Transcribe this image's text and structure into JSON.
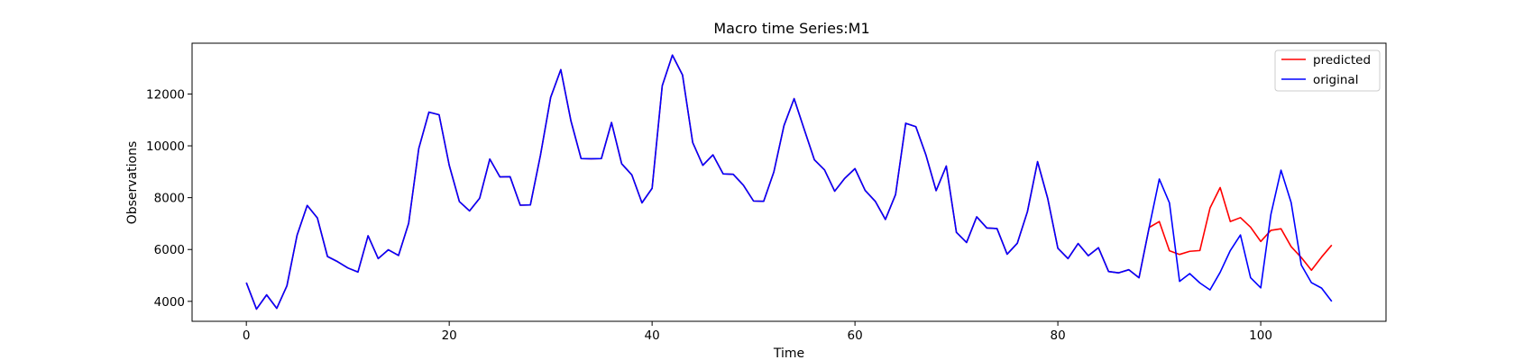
{
  "chart_data": {
    "type": "line",
    "title": "Macro time Series:M1",
    "xlabel": "Time",
    "ylabel": "Observations",
    "xlim": [
      -5.35,
      112.35
    ],
    "ylim": [
      3230,
      13960
    ],
    "xticks": [
      0,
      20,
      40,
      60,
      80,
      100
    ],
    "yticks": [
      4000,
      6000,
      8000,
      10000,
      12000
    ],
    "grid": false,
    "legend_position": "top-right",
    "series": [
      {
        "name": "predicted",
        "color": "#ff0000",
        "x_start": 0,
        "values": [
          4720,
          3700,
          4250,
          3730,
          4600,
          6550,
          7700,
          7220,
          5730,
          5530,
          5290,
          5130,
          6530,
          5650,
          5990,
          5770,
          7010,
          9900,
          11300,
          11200,
          9250,
          7850,
          7490,
          7980,
          9490,
          8800,
          8810,
          7710,
          7720,
          9650,
          11870,
          12940,
          10960,
          9510,
          9500,
          9510,
          10900,
          9310,
          8880,
          7800,
          8360,
          12320,
          13500,
          12730,
          10130,
          9250,
          9650,
          8920,
          8900,
          8480,
          7870,
          7860,
          8990,
          10780,
          11820,
          10630,
          9460,
          9070,
          8250,
          8750,
          9120,
          8280,
          7860,
          7160,
          8120,
          10870,
          10740,
          9640,
          8270,
          9220,
          6660,
          6270,
          7260,
          6830,
          6810,
          5820,
          6240,
          7460,
          9390,
          7970,
          6050,
          5650,
          6230,
          5760,
          6070,
          5150,
          5100,
          5220,
          4910,
          6850,
          7080,
          5950,
          5810,
          5930,
          5960,
          7600,
          8390,
          7080,
          7230,
          6860,
          6310,
          6740,
          6800,
          6110,
          5690,
          5200,
          5710,
          6170
        ]
      },
      {
        "name": "original",
        "color": "#0000ff",
        "x_start": 0,
        "values": [
          4720,
          3700,
          4250,
          3730,
          4600,
          6550,
          7700,
          7220,
          5730,
          5530,
          5290,
          5130,
          6530,
          5650,
          5990,
          5770,
          7010,
          9900,
          11300,
          11200,
          9250,
          7850,
          7490,
          7980,
          9490,
          8800,
          8810,
          7710,
          7720,
          9650,
          11870,
          12940,
          10960,
          9510,
          9500,
          9510,
          10900,
          9310,
          8880,
          7800,
          8360,
          12320,
          13500,
          12730,
          10130,
          9250,
          9650,
          8920,
          8900,
          8480,
          7870,
          7860,
          8990,
          10780,
          11820,
          10630,
          9460,
          9070,
          8250,
          8750,
          9120,
          8280,
          7860,
          7160,
          8120,
          10870,
          10740,
          9640,
          8270,
          9220,
          6660,
          6270,
          7260,
          6830,
          6810,
          5820,
          6240,
          7460,
          9390,
          7970,
          6050,
          5650,
          6230,
          5760,
          6070,
          5150,
          5100,
          5220,
          4910,
          6850,
          8720,
          7800,
          4770,
          5070,
          4710,
          4440,
          5120,
          5960,
          6560,
          4910,
          4520,
          7350,
          9060,
          7810,
          5400,
          4720,
          4510,
          4000
        ]
      }
    ]
  }
}
